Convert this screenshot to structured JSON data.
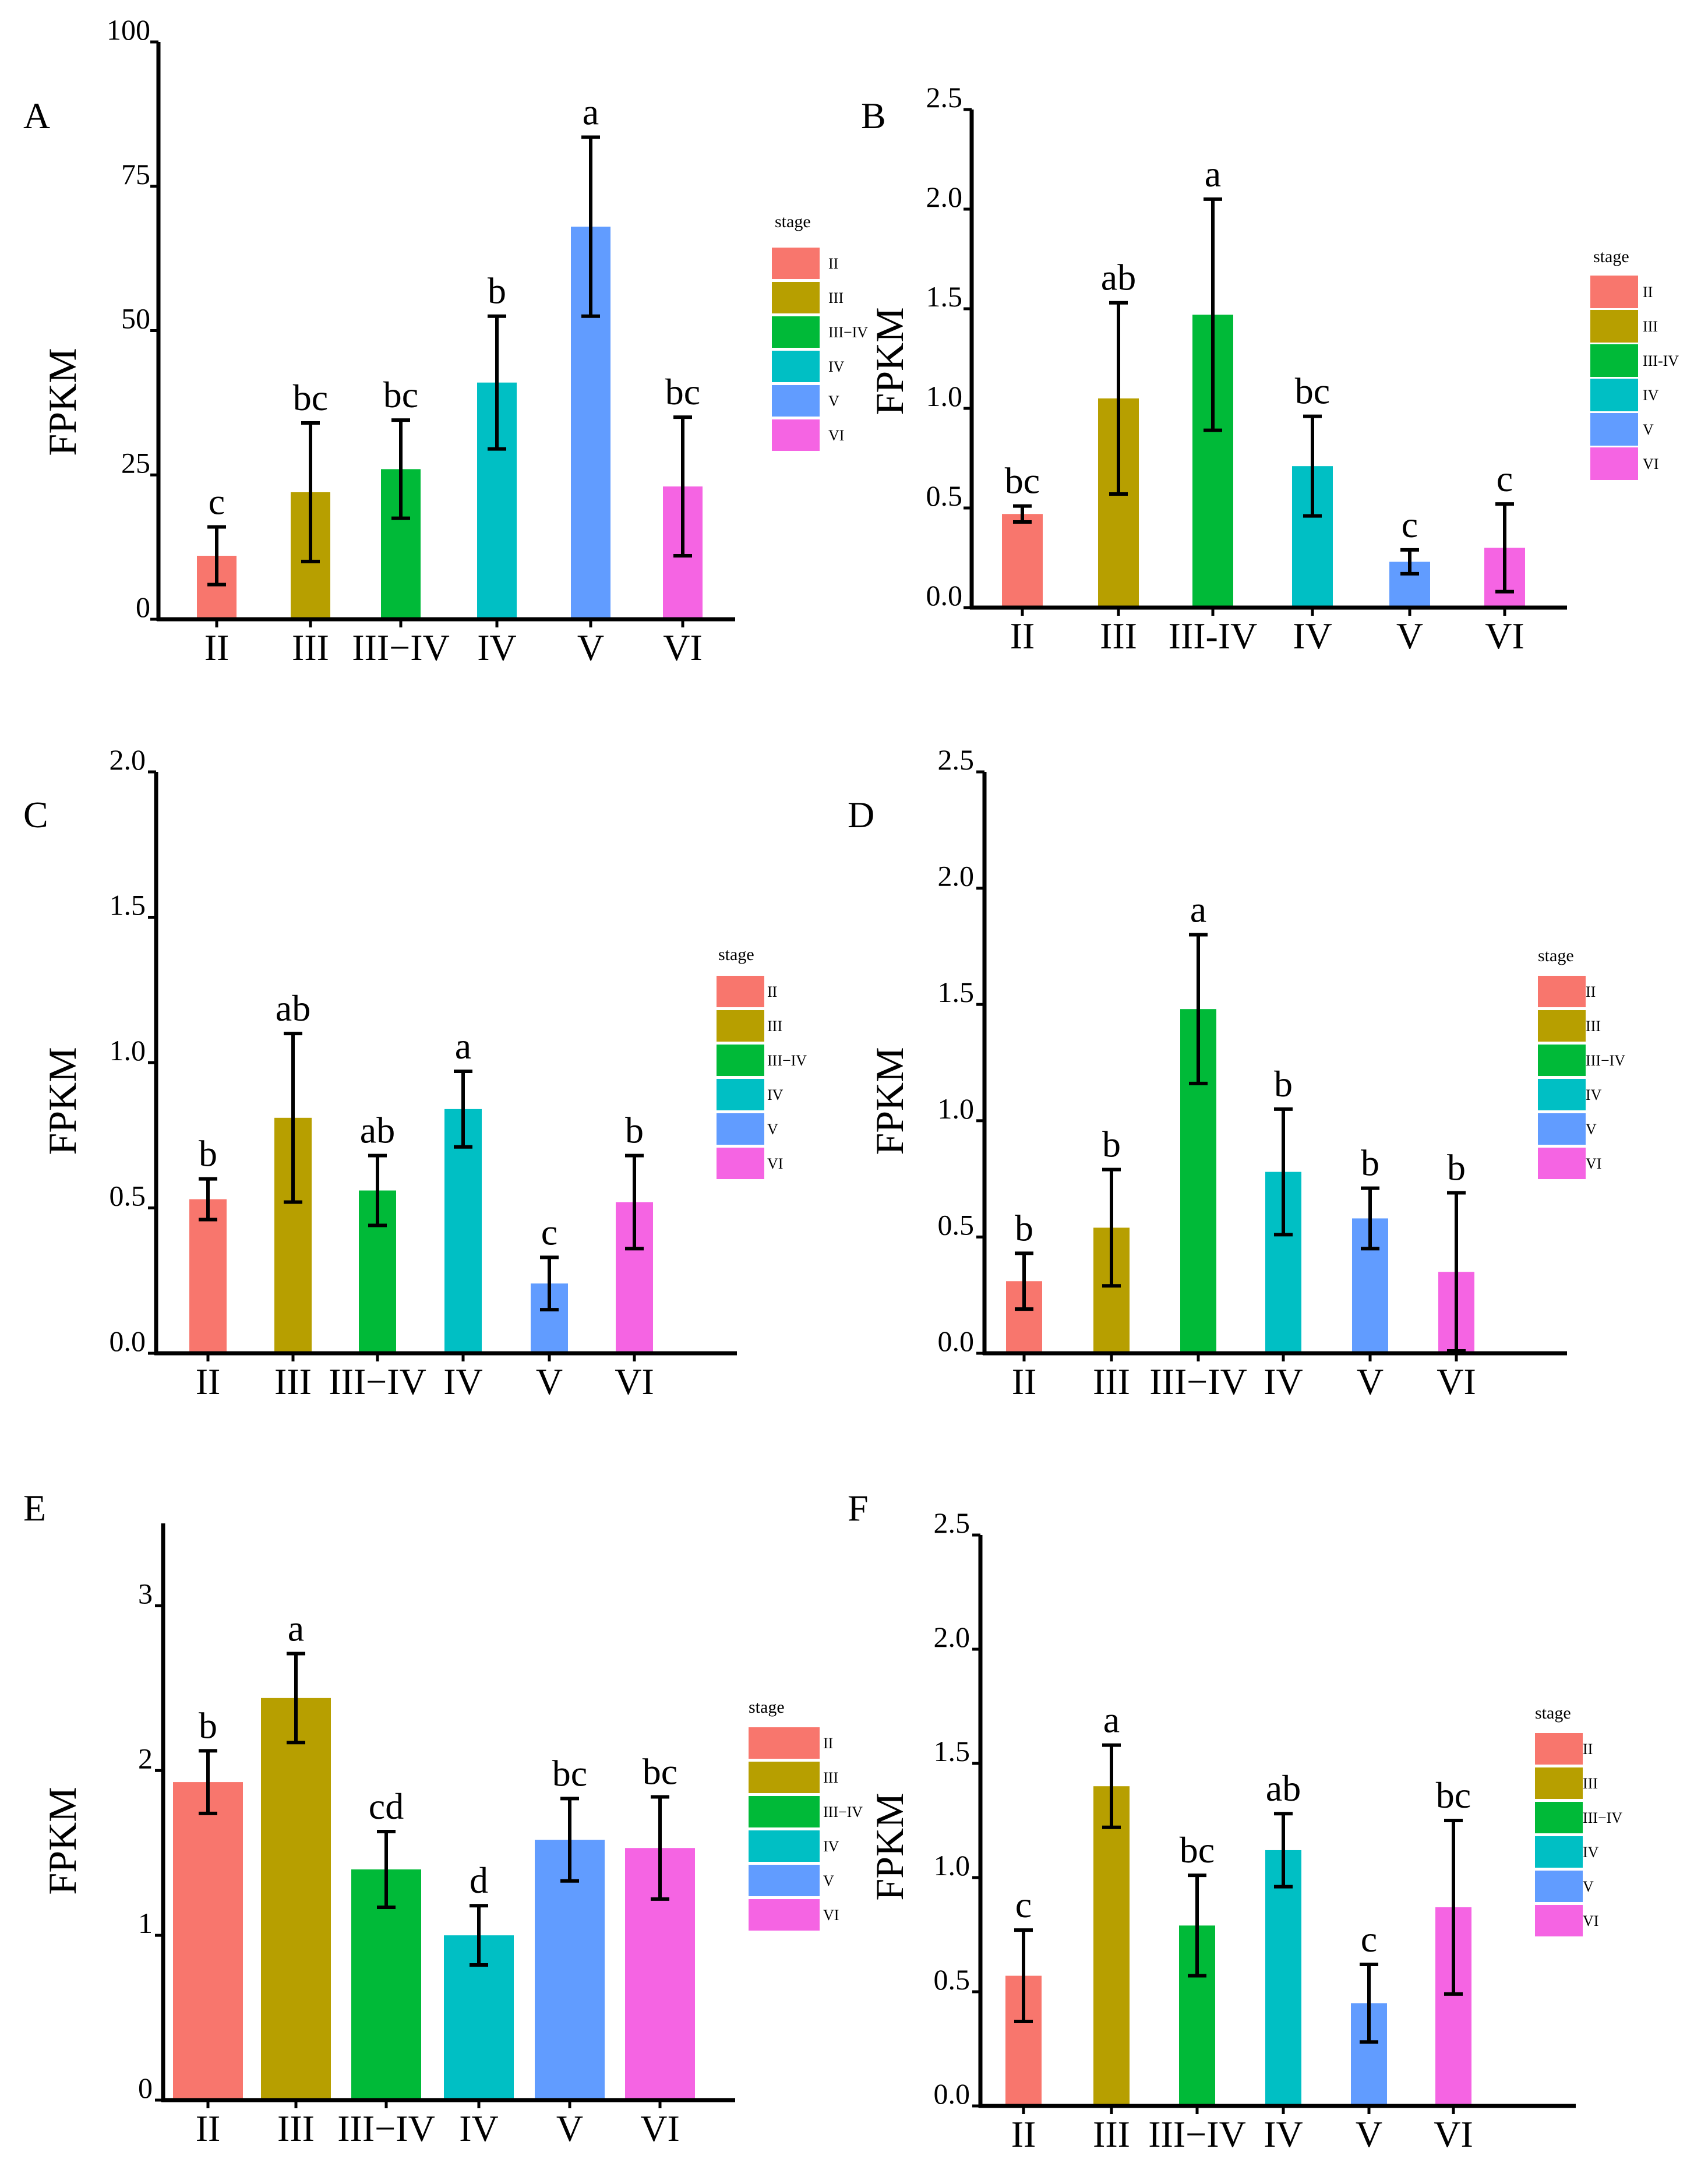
{
  "chart_data": [
    {
      "type": "bar",
      "panel": "A",
      "ylabel": "FPKM",
      "yticks": [
        "0",
        "25",
        "50",
        "75",
        "100"
      ],
      "ylim": [
        0,
        100
      ],
      "categories": [
        "II",
        "III",
        "III−IV",
        "IV",
        "V",
        "VI"
      ],
      "values": [
        11,
        22,
        26,
        41,
        68,
        23
      ],
      "errors": [
        5,
        12,
        8.5,
        11.5,
        15.5,
        12
      ],
      "significance": [
        "c",
        "bc",
        "bc",
        "b",
        "a",
        "bc"
      ],
      "colors": [
        "#F8766D",
        "#B79F00",
        "#00BA38",
        "#00BFC4",
        "#619CFF",
        "#F564E3"
      ],
      "legend": {
        "title": "stage",
        "items": [
          "II",
          "III",
          "III−IV",
          "IV",
          "V",
          "VI"
        ]
      }
    },
    {
      "type": "bar",
      "panel": "B",
      "ylabel": "FPKM",
      "yticks": [
        "0.0",
        "0.5",
        "1.0",
        "1.5",
        "2.0",
        "2.5"
      ],
      "ylim": [
        0,
        2.5
      ],
      "categories": [
        "II",
        "III",
        "III-IV",
        "IV",
        "V",
        "VI"
      ],
      "values": [
        0.47,
        1.05,
        1.47,
        0.71,
        0.23,
        0.3
      ],
      "errors": [
        0.04,
        0.48,
        0.58,
        0.25,
        0.06,
        0.22
      ],
      "significance": [
        "bc",
        "ab",
        "a",
        "bc",
        "c",
        "c"
      ],
      "colors": [
        "#F8766D",
        "#B79F00",
        "#00BA38",
        "#00BFC4",
        "#619CFF",
        "#F564E3"
      ],
      "legend": {
        "title": "stage",
        "items": [
          "II",
          "III",
          "III-IV",
          "IV",
          "V",
          "VI"
        ]
      }
    },
    {
      "type": "bar",
      "panel": "C",
      "ylabel": "FPKM",
      "yticks": [
        "0.0",
        "0.5",
        "1.0",
        "1.5",
        "2.0"
      ],
      "ylim": [
        0,
        2.0
      ],
      "categories": [
        "II",
        "III",
        "III−IV",
        "IV",
        "V",
        "VI"
      ],
      "values": [
        0.53,
        0.81,
        0.56,
        0.84,
        0.24,
        0.52
      ],
      "errors": [
        0.07,
        0.29,
        0.12,
        0.13,
        0.09,
        0.16
      ],
      "significance": [
        "b",
        "ab",
        "ab",
        "a",
        "c",
        "b"
      ],
      "colors": [
        "#F8766D",
        "#B79F00",
        "#00BA38",
        "#00BFC4",
        "#619CFF",
        "#F564E3"
      ],
      "legend": {
        "title": "stage",
        "items": [
          "II",
          "III",
          "III−IV",
          "IV",
          "V",
          "VI"
        ]
      }
    },
    {
      "type": "bar",
      "panel": "D",
      "ylabel": "FPKM",
      "yticks": [
        "0.0",
        "0.5",
        "1.0",
        "1.5",
        "2.0",
        "2.5"
      ],
      "ylim": [
        0,
        2.5
      ],
      "categories": [
        "II",
        "III",
        "III−IV",
        "IV",
        "V",
        "VI"
      ],
      "values": [
        0.31,
        0.54,
        1.48,
        0.78,
        0.58,
        0.35
      ],
      "errors": [
        0.12,
        0.25,
        0.32,
        0.27,
        0.13,
        0.34
      ],
      "significance": [
        "b",
        "b",
        "a",
        "b",
        "b",
        "b"
      ],
      "colors": [
        "#F8766D",
        "#B79F00",
        "#00BA38",
        "#00BFC4",
        "#619CFF",
        "#F564E3"
      ],
      "legend": {
        "title": "stage",
        "items": [
          "II",
          "III",
          "III−IV",
          "IV",
          "V",
          "VI"
        ]
      }
    },
    {
      "type": "bar",
      "panel": "E",
      "ylabel": "FPKM",
      "yticks": [
        "0",
        "1",
        "2",
        "3"
      ],
      "ylim": [
        0,
        3.5
      ],
      "categories": [
        "II",
        "III",
        "III−IV",
        "IV",
        "V",
        "VI"
      ],
      "values": [
        1.93,
        2.44,
        1.4,
        1.0,
        1.58,
        1.53
      ],
      "errors": [
        0.19,
        0.27,
        0.23,
        0.18,
        0.25,
        0.31
      ],
      "significance": [
        "b",
        "a",
        "cd",
        "d",
        "bc",
        "bc"
      ],
      "colors": [
        "#F8766D",
        "#B79F00",
        "#00BA38",
        "#00BFC4",
        "#619CFF",
        "#F564E3"
      ],
      "legend": {
        "title": "stage",
        "items": [
          "II",
          "III",
          "III−IV",
          "IV",
          "V",
          "VI"
        ]
      }
    },
    {
      "type": "bar",
      "panel": "F",
      "ylabel": "FPKM",
      "yticks": [
        "0.0",
        "0.5",
        "1.0",
        "1.5",
        "2.0",
        "2.5"
      ],
      "ylim": [
        0,
        2.5
      ],
      "categories": [
        "II",
        "III",
        "III−IV",
        "IV",
        "V",
        "VI"
      ],
      "values": [
        0.57,
        1.4,
        0.79,
        1.12,
        0.45,
        0.87
      ],
      "errors": [
        0.2,
        0.18,
        0.22,
        0.16,
        0.17,
        0.38
      ],
      "significance": [
        "c",
        "a",
        "bc",
        "ab",
        "c",
        "bc"
      ],
      "colors": [
        "#F8766D",
        "#B79F00",
        "#00BA38",
        "#00BFC4",
        "#619CFF",
        "#F564E3"
      ],
      "legend": {
        "title": "stage",
        "items": [
          "II",
          "III",
          "III−IV",
          "IV",
          "V",
          "VI"
        ]
      }
    }
  ]
}
